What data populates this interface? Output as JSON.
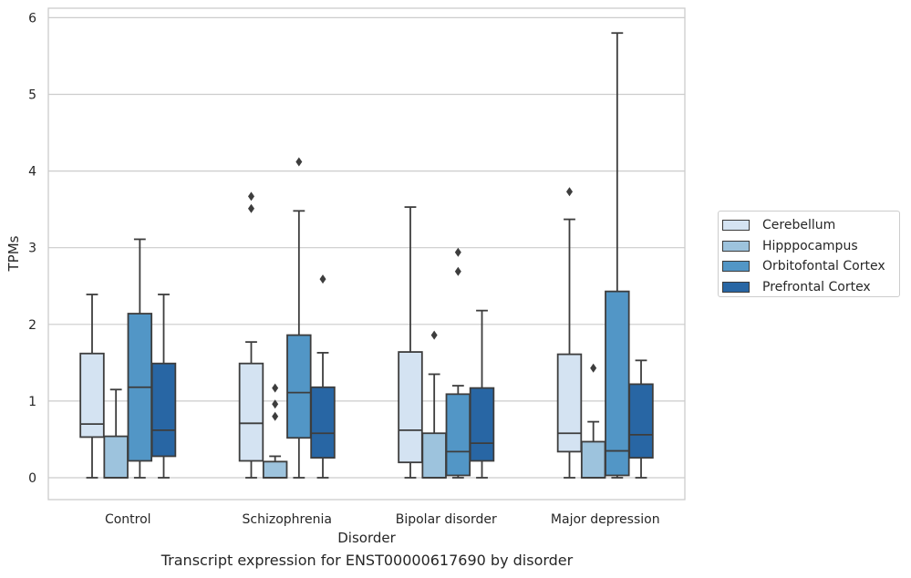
{
  "caption": "Transcript expression for ENST00000617690 by disorder",
  "chart_data": {
    "type": "box",
    "xlabel": "Disorder",
    "ylabel": "TPMs",
    "ylim": [
      -0.28,
      6.1
    ],
    "yticks": [
      "0",
      "1",
      "2",
      "3",
      "4",
      "5",
      "6"
    ],
    "categories": [
      "Control",
      "Schizophrenia",
      "Bipolar disorder",
      "Major depression"
    ],
    "grid": true,
    "legend_position": "right",
    "series": [
      {
        "name": "Cerebellum",
        "color": "#d4e3f2",
        "boxes": [
          {
            "whislo": 0,
            "q1": 0.53,
            "med": 0.7,
            "q3": 1.62,
            "whishi": 2.39,
            "fliers": []
          },
          {
            "whislo": 0,
            "q1": 0.22,
            "med": 0.71,
            "q3": 1.49,
            "whishi": 1.77,
            "fliers": [
              3.51,
              3.67
            ]
          },
          {
            "whislo": 0,
            "q1": 0.2,
            "med": 0.62,
            "q3": 1.64,
            "whishi": 3.53,
            "fliers": []
          },
          {
            "whislo": 0,
            "q1": 0.34,
            "med": 0.58,
            "q3": 1.61,
            "whishi": 3.37,
            "fliers": [
              3.73
            ]
          }
        ]
      },
      {
        "name": "Hipppocampus",
        "color": "#9dc3dd",
        "boxes": [
          {
            "whislo": 0,
            "q1": 0.0,
            "med": 0.0,
            "q3": 0.54,
            "whishi": 1.15,
            "fliers": []
          },
          {
            "whislo": 0,
            "q1": 0.0,
            "med": 0.0,
            "q3": 0.21,
            "whishi": 0.28,
            "fliers": [
              0.8,
              0.96,
              1.17
            ]
          },
          {
            "whislo": 0,
            "q1": 0.0,
            "med": 0.0,
            "q3": 0.58,
            "whishi": 1.35,
            "fliers": [
              1.86
            ]
          },
          {
            "whislo": 0,
            "q1": 0.0,
            "med": 0.0,
            "q3": 0.47,
            "whishi": 0.73,
            "fliers": [
              1.43
            ]
          }
        ]
      },
      {
        "name": "Orbitofontal Cortex",
        "color": "#5296c6",
        "boxes": [
          {
            "whislo": 0,
            "q1": 0.22,
            "med": 1.18,
            "q3": 2.14,
            "whishi": 3.11,
            "fliers": []
          },
          {
            "whislo": 0,
            "q1": 0.52,
            "med": 1.11,
            "q3": 1.86,
            "whishi": 3.48,
            "fliers": [
              4.12
            ]
          },
          {
            "whislo": 0,
            "q1": 0.03,
            "med": 0.34,
            "q3": 1.09,
            "whishi": 1.2,
            "fliers": [
              2.69,
              2.94
            ]
          },
          {
            "whislo": 0,
            "q1": 0.03,
            "med": 0.35,
            "q3": 2.43,
            "whishi": 5.8,
            "fliers": []
          }
        ]
      },
      {
        "name": "Prefrontal Cortex",
        "color": "#2866a4",
        "boxes": [
          {
            "whislo": 0,
            "q1": 0.28,
            "med": 0.62,
            "q3": 1.49,
            "whishi": 2.39,
            "fliers": []
          },
          {
            "whislo": 0,
            "q1": 0.26,
            "med": 0.58,
            "q3": 1.18,
            "whishi": 1.63,
            "fliers": [
              2.59
            ]
          },
          {
            "whislo": 0,
            "q1": 0.22,
            "med": 0.45,
            "q3": 1.17,
            "whishi": 2.18,
            "fliers": []
          },
          {
            "whislo": 0,
            "q1": 0.26,
            "med": 0.56,
            "q3": 1.22,
            "whishi": 1.53,
            "fliers": []
          }
        ]
      }
    ]
  }
}
